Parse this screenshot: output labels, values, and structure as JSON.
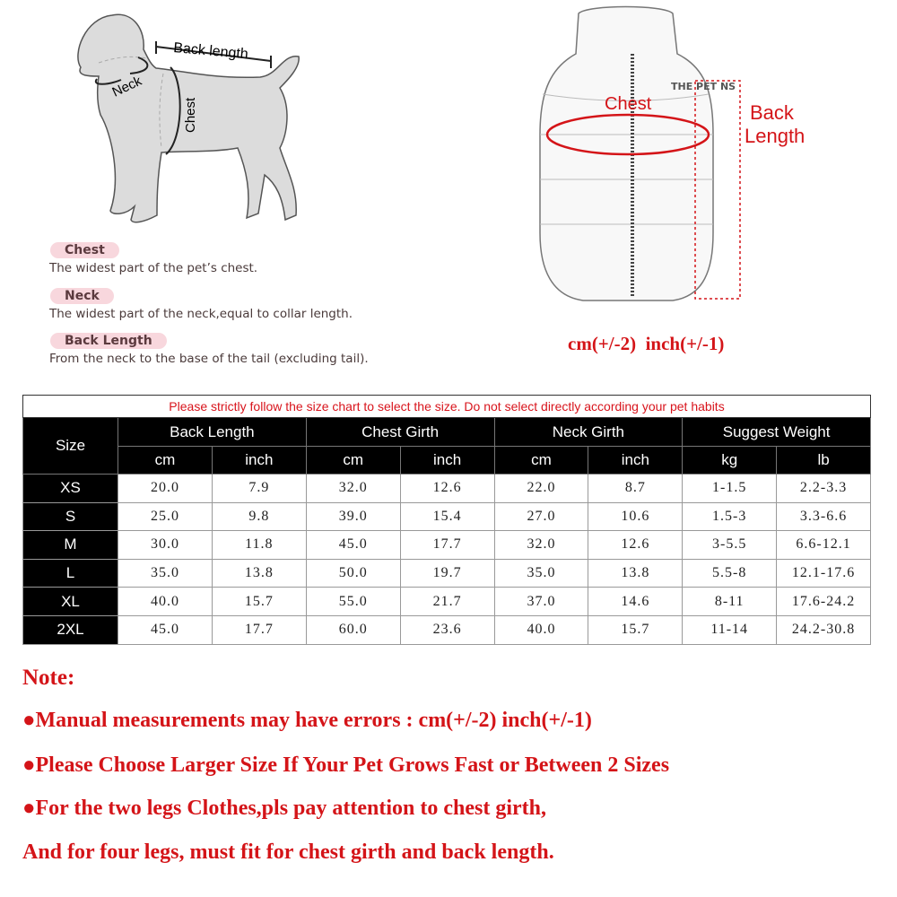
{
  "diagram": {
    "back_length": "Back length",
    "neck": "Neck",
    "chest": "Chest"
  },
  "definitions": [
    {
      "term": "Chest",
      "text": "The widest part of the pet’s chest."
    },
    {
      "term": "Neck",
      "text": "The widest part of the neck,equal to collar length."
    },
    {
      "term": "Back Length",
      "text": "From the neck to the base of the tail (excluding tail)."
    }
  ],
  "vest": {
    "chest": "Chest",
    "back_length_1": "Back",
    "back_length_2": "Length",
    "logo": "THE PET NS",
    "tolerance": "cm(+/-2)  inch(+/-1)"
  },
  "colors": {
    "accent_red": "#d41418",
    "pink": "#f8d7dd"
  },
  "table": {
    "caption": "Please strictly follow the size chart to select the size. Do not select directly according your pet habits",
    "size_header": "Size",
    "groups": [
      "Back Length",
      "Chest Girth",
      "Neck Girth",
      "Suggest Weight"
    ],
    "units": [
      "cm",
      "inch",
      "cm",
      "inch",
      "cm",
      "inch",
      "kg",
      "lb"
    ],
    "rows": [
      {
        "size": "XS",
        "values": [
          "20.0",
          "7.9",
          "32.0",
          "12.6",
          "22.0",
          "8.7",
          "1-1.5",
          "2.2-3.3"
        ]
      },
      {
        "size": "S",
        "values": [
          "25.0",
          "9.8",
          "39.0",
          "15.4",
          "27.0",
          "10.6",
          "1.5-3",
          "3.3-6.6"
        ]
      },
      {
        "size": "M",
        "values": [
          "30.0",
          "11.8",
          "45.0",
          "17.7",
          "32.0",
          "12.6",
          "3-5.5",
          "6.6-12.1"
        ]
      },
      {
        "size": "L",
        "values": [
          "35.0",
          "13.8",
          "50.0",
          "19.7",
          "35.0",
          "13.8",
          "5.5-8",
          "12.1-17.6"
        ]
      },
      {
        "size": "XL",
        "values": [
          "40.0",
          "15.7",
          "55.0",
          "21.7",
          "37.0",
          "14.6",
          "8-11",
          "17.6-24.2"
        ]
      },
      {
        "size": "2XL",
        "values": [
          "45.0",
          "17.7",
          "60.0",
          "23.6",
          "40.0",
          "15.7",
          "11-14",
          "24.2-30.8"
        ]
      }
    ]
  },
  "notes": {
    "title": "Note:",
    "items": [
      "●Manual measurements may have errors : cm(+/-2)  inch(+/-1)",
      "●Please Choose Larger Size If Your Pet Grows Fast or Between 2 Sizes",
      "●For the two legs Clothes,pls pay attention to chest girth,",
      "And for four legs, must fit for chest girth and back length."
    ]
  }
}
